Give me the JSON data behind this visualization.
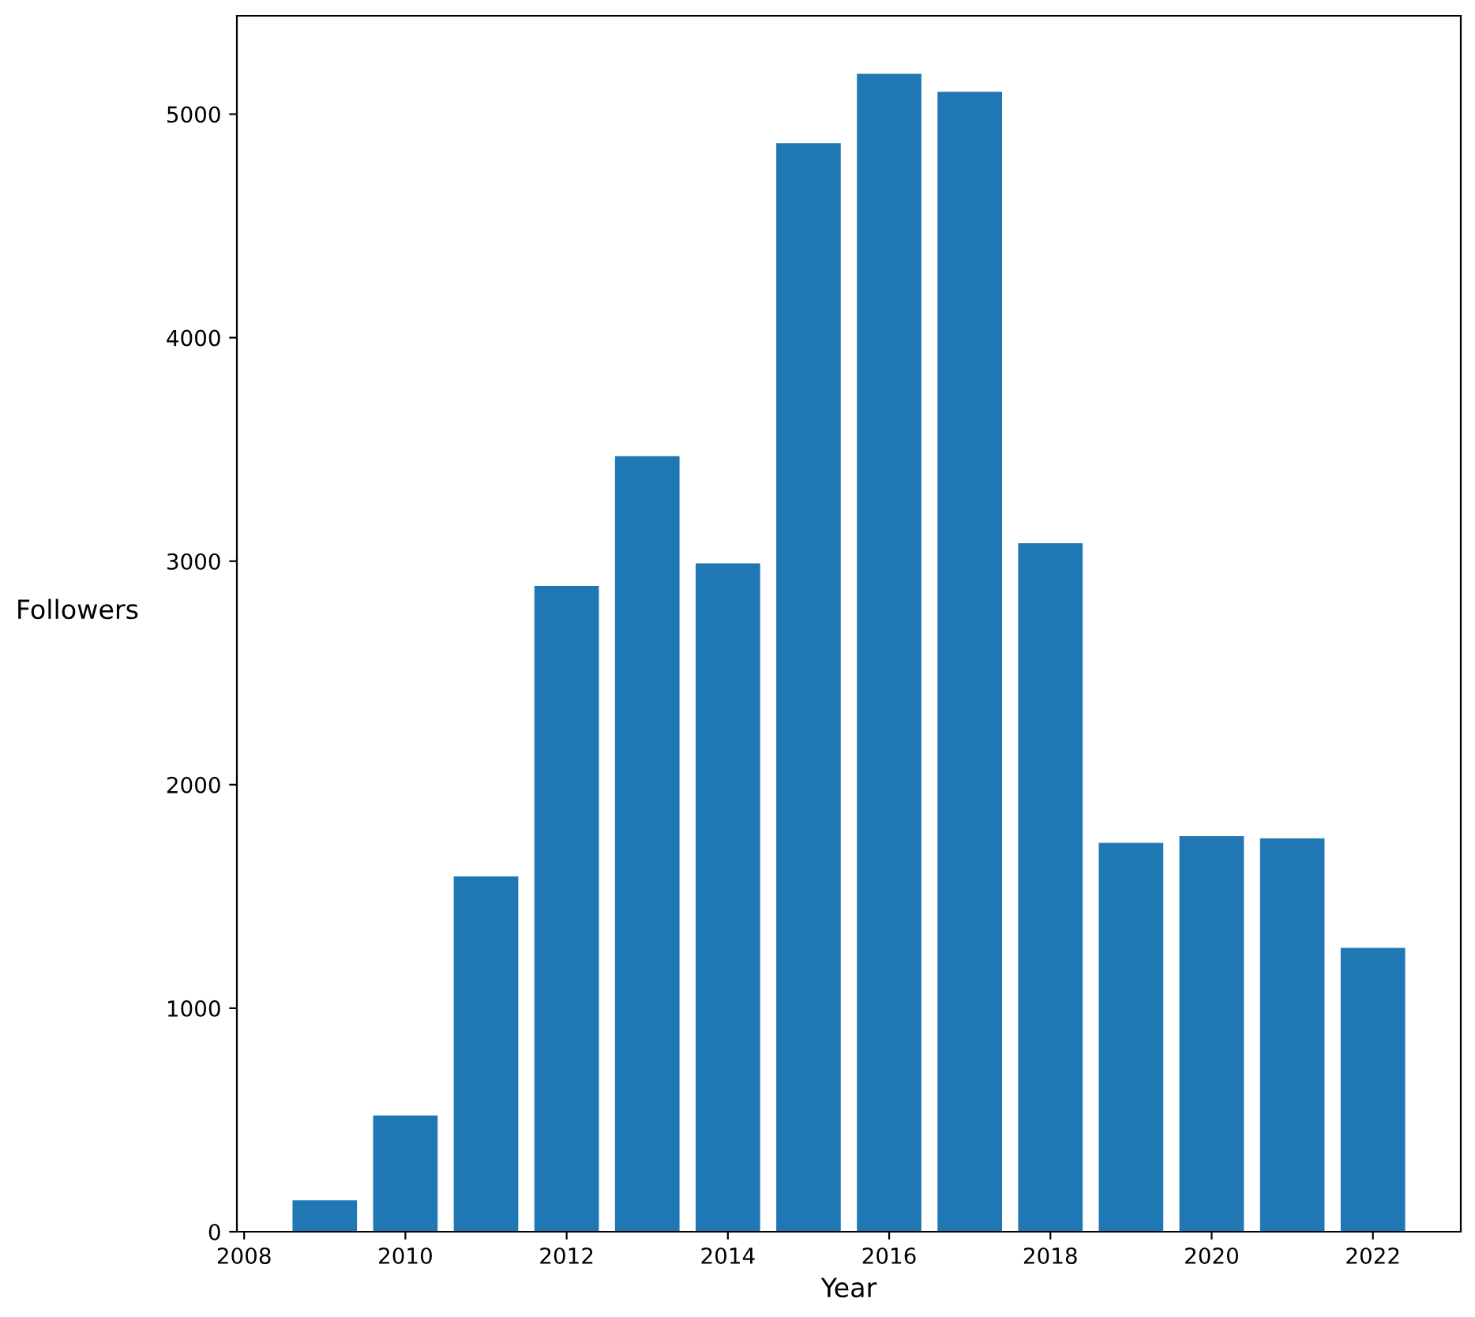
{
  "chart_data": {
    "type": "bar",
    "xlabel": "Year",
    "ylabel": "Followers",
    "x": [
      2009,
      2010,
      2011,
      2012,
      2013,
      2014,
      2015,
      2016,
      2017,
      2018,
      2019,
      2020,
      2021,
      2022
    ],
    "values": [
      140,
      520,
      1590,
      2890,
      3470,
      2990,
      4870,
      5180,
      5100,
      3080,
      1740,
      1770,
      1760,
      1270
    ],
    "color": "#1f77b4",
    "xlim": [
      2007.91,
      2023.09
    ],
    "xticks": [
      2008,
      2010,
      2012,
      2014,
      2016,
      2018,
      2020,
      2022
    ],
    "ylim": [
      0,
      5440
    ],
    "yticks": [
      0,
      1000,
      2000,
      3000,
      4000,
      5000
    ],
    "grid": false
  }
}
